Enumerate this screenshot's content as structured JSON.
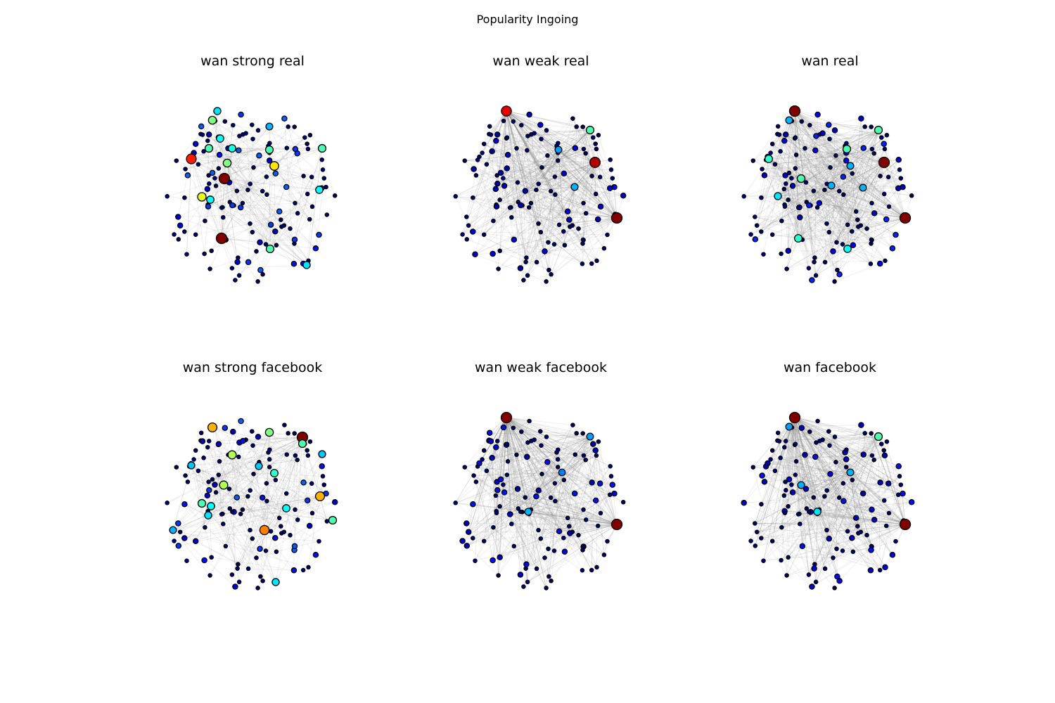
{
  "figure_title": "Popularity Ingoing",
  "panels": [
    {
      "title": "wan strong real",
      "hubs": [
        [
          319,
          254,
          1.0
        ],
        [
          315,
          339,
          1.0
        ],
        [
          272,
          226,
          0.85
        ],
        [
          390,
          236,
          0.65
        ],
        [
          287,
          280,
          0.6
        ],
        [
          302,
          171,
          0.5
        ],
        [
          323,
          232,
          0.5
        ],
        [
          384,
          354,
          0.45
        ],
        [
          458,
          211,
          0.45
        ],
        [
          297,
          211,
          0.45
        ],
        [
          330,
          211,
          0.4
        ],
        [
          383,
          213,
          0.45
        ],
        [
          313,
          197,
          0.38
        ],
        [
          454,
          270,
          0.38
        ],
        [
          299,
          284,
          0.38
        ],
        [
          436,
          377,
          0.35
        ],
        [
          309,
          158,
          0.35
        ],
        [
          383,
          180,
          0.3
        ]
      ]
    },
    {
      "title": "wan weak real",
      "hubs": [
        [
          720,
          158,
          0.9
        ],
        [
          877,
          310,
          1.0
        ],
        [
          846,
          231,
          0.95
        ],
        [
          839,
          185,
          0.45
        ],
        [
          817,
          266,
          0.3
        ],
        [
          794,
          213,
          0.28
        ]
      ]
    },
    {
      "title": "wan real",
      "hubs": [
        [
          1130,
          158,
          1.0
        ],
        [
          1287,
          310,
          1.0
        ],
        [
          1257,
          231,
          1.0
        ],
        [
          1249,
          185,
          0.45
        ],
        [
          1204,
          212,
          0.45
        ],
        [
          1093,
          226,
          0.42
        ],
        [
          1139,
          254,
          0.45
        ],
        [
          1135,
          339,
          0.42
        ],
        [
          1205,
          354,
          0.38
        ],
        [
          1106,
          279,
          0.35
        ],
        [
          1122,
          171,
          0.3
        ],
        [
          1182,
          264,
          0.3
        ],
        [
          1209,
          236,
          0.3
        ],
        [
          1227,
          267,
          0.3
        ]
      ]
    },
    {
      "title": "wan strong facebook",
      "hubs": [
        [
          430,
          622,
          1.0
        ],
        [
          376,
          754,
          0.75
        ],
        [
          302,
          608,
          0.7
        ],
        [
          455,
          706,
          0.7
        ],
        [
          330,
          647,
          0.55
        ],
        [
          318,
          690,
          0.55
        ],
        [
          383,
          615,
          0.5
        ],
        [
          287,
          716,
          0.45
        ],
        [
          473,
          740,
          0.45
        ],
        [
          430,
          631,
          0.45
        ],
        [
          390,
          673,
          0.42
        ],
        [
          407,
          723,
          0.38
        ],
        [
          300,
          720,
          0.38
        ],
        [
          296,
          733,
          0.35
        ],
        [
          392,
          828,
          0.35
        ],
        [
          272,
          662,
          0.32
        ],
        [
          458,
          646,
          0.32
        ],
        [
          368,
          663,
          0.32
        ],
        [
          246,
          754,
          0.3
        ]
      ]
    },
    {
      "title": "wan weak facebook",
      "hubs": [
        [
          720,
          594,
          1.0
        ],
        [
          877,
          746,
          1.0
        ],
        [
          751,
          728,
          0.3
        ],
        [
          839,
          621,
          0.28
        ],
        [
          799,
          672,
          0.25
        ]
      ]
    },
    {
      "title": "wan facebook",
      "hubs": [
        [
          1130,
          594,
          1.0
        ],
        [
          1287,
          746,
          1.0
        ],
        [
          1249,
          621,
          0.45
        ],
        [
          1162,
          728,
          0.35
        ],
        [
          1209,
          672,
          0.3
        ],
        [
          1139,
          690,
          0.3
        ],
        [
          1122,
          607,
          0.28
        ]
      ]
    }
  ],
  "colormap": "jet"
}
